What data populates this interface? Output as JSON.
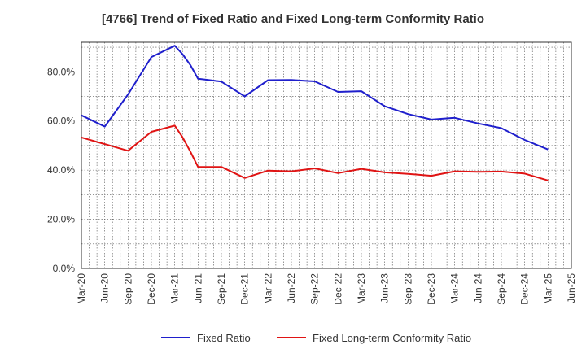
{
  "title": "[4766]  Trend of Fixed Ratio and Fixed Long-term Conformity Ratio",
  "chart_data": {
    "type": "line",
    "title": "[4766]  Trend of Fixed Ratio and Fixed Long-term Conformity Ratio",
    "xlabel": "",
    "ylabel": "",
    "ylim": [
      0,
      92
    ],
    "y_ticks": [
      0,
      20,
      40,
      60,
      80
    ],
    "y_tick_labels": [
      "0.0%",
      "20.0%",
      "40.0%",
      "60.0%",
      "80.0%"
    ],
    "x_ticks": [
      "Mar-20",
      "Jun-20",
      "Sep-20",
      "Dec-20",
      "Mar-21",
      "Jun-21",
      "Sep-21",
      "Dec-21",
      "Mar-22",
      "Jun-22",
      "Sep-22",
      "Dec-22",
      "Mar-23",
      "Jun-23",
      "Sep-23",
      "Dec-23",
      "Mar-24",
      "Jun-24",
      "Sep-24",
      "Dec-24",
      "Mar-25",
      "Jun-25"
    ],
    "grid": true,
    "legend_position": "bottom",
    "series": [
      {
        "name": "Fixed Ratio",
        "color": "#1f1fcc",
        "points": [
          [
            "Mar-20",
            62.3
          ],
          [
            "Jun-20",
            57.7
          ],
          [
            "Sep-20",
            70.8
          ],
          [
            "Dec-20",
            86.0
          ],
          [
            "Mar-21",
            90.6
          ],
          [
            "Apr-21",
            87.2
          ],
          [
            "May-21",
            82.8
          ],
          [
            "Jun-21",
            77.2
          ],
          [
            "Sep-21",
            76.0
          ],
          [
            "Dec-21",
            70.0
          ],
          [
            "Mar-22",
            76.6
          ],
          [
            "Jun-22",
            76.7
          ],
          [
            "Sep-22",
            76.1
          ],
          [
            "Dec-22",
            71.8
          ],
          [
            "Mar-23",
            72.1
          ],
          [
            "Jun-23",
            66.0
          ],
          [
            "Sep-23",
            62.8
          ],
          [
            "Dec-23",
            60.6
          ],
          [
            "Mar-24",
            61.3
          ],
          [
            "Jun-24",
            59.0
          ],
          [
            "Sep-24",
            57.1
          ],
          [
            "Dec-24",
            52.3
          ],
          [
            "Mar-25",
            48.4
          ]
        ]
      },
      {
        "name": "Fixed Long-term Conformity Ratio",
        "color": "#e01414",
        "points": [
          [
            "Mar-20",
            53.3
          ],
          [
            "Jun-20",
            50.6
          ],
          [
            "Sep-20",
            47.9
          ],
          [
            "Dec-20",
            55.6
          ],
          [
            "Mar-21",
            58.1
          ],
          [
            "Apr-21",
            53.4
          ],
          [
            "May-21",
            47.6
          ],
          [
            "Jun-21",
            41.3
          ],
          [
            "Sep-21",
            41.3
          ],
          [
            "Dec-21",
            36.8
          ],
          [
            "Mar-22",
            39.8
          ],
          [
            "Jun-22",
            39.5
          ],
          [
            "Sep-22",
            40.7
          ],
          [
            "Dec-22",
            38.8
          ],
          [
            "Mar-23",
            40.5
          ],
          [
            "Jun-23",
            39.1
          ],
          [
            "Sep-23",
            38.5
          ],
          [
            "Dec-23",
            37.7
          ],
          [
            "Mar-24",
            39.5
          ],
          [
            "Jun-24",
            39.3
          ],
          [
            "Sep-24",
            39.4
          ],
          [
            "Dec-24",
            38.6
          ],
          [
            "Mar-25",
            35.8
          ]
        ]
      }
    ]
  }
}
